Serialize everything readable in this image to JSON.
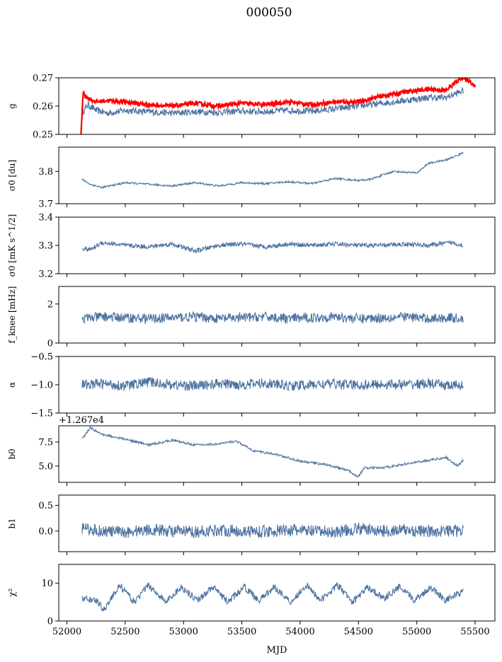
{
  "figure": {
    "title": "000050",
    "xlabel": "MJD",
    "x_ticks": [
      "52000",
      "52500",
      "53000",
      "53500",
      "54000",
      "54500",
      "55000",
      "55500"
    ],
    "line_color": "#4c72a0",
    "overlay_color": "#ff0000"
  },
  "chart_data": [
    {
      "type": "line",
      "ylabel": "g",
      "xlim": [
        51930,
        55670
      ],
      "ylim": [
        0.25,
        0.27
      ],
      "y_ticks": [
        "0.25",
        "0.26",
        "0.27"
      ],
      "series": [
        {
          "color": "#4c72a0",
          "x": [
            52130,
            52180,
            52250,
            52350,
            52500,
            52700,
            52900,
            53100,
            53300,
            53500,
            53700,
            53900,
            54100,
            54300,
            54500,
            54700,
            54900,
            55100,
            55250,
            55400
          ],
          "values": [
            0.2575,
            0.2605,
            0.2585,
            0.2575,
            0.2585,
            0.258,
            0.2575,
            0.258,
            0.2578,
            0.2582,
            0.258,
            0.2585,
            0.2582,
            0.259,
            0.26,
            0.261,
            0.262,
            0.263,
            0.263,
            0.2655
          ]
        },
        {
          "color": "#ff0000",
          "x": [
            52120,
            52140,
            52170,
            52250,
            52350,
            52500,
            52700,
            52900,
            53100,
            53300,
            53500,
            53700,
            53900,
            54100,
            54300,
            54500,
            54700,
            54900,
            55100,
            55250,
            55380,
            55450,
            55500
          ],
          "values": [
            0.25,
            0.265,
            0.263,
            0.2615,
            0.262,
            0.2615,
            0.2605,
            0.26,
            0.261,
            0.26,
            0.261,
            0.2605,
            0.2615,
            0.2605,
            0.2615,
            0.2615,
            0.2635,
            0.265,
            0.266,
            0.2655,
            0.27,
            0.269,
            0.267
          ]
        }
      ]
    },
    {
      "type": "line",
      "ylabel": "σ0 [du]",
      "xlim": [
        51930,
        55670
      ],
      "ylim": [
        3.7,
        3.875
      ],
      "y_ticks": [
        "3.7",
        "3.8"
      ],
      "series": [
        {
          "color": "#4c72a0",
          "x": [
            52130,
            52200,
            52300,
            52500,
            52700,
            52900,
            53100,
            53300,
            53500,
            53700,
            53900,
            54100,
            54300,
            54500,
            54600,
            54800,
            55000,
            55100,
            55250,
            55350,
            55400
          ],
          "values": [
            3.775,
            3.76,
            3.75,
            3.765,
            3.76,
            3.755,
            3.765,
            3.755,
            3.765,
            3.762,
            3.768,
            3.762,
            3.778,
            3.772,
            3.775,
            3.8,
            3.795,
            3.825,
            3.835,
            3.85,
            3.858
          ]
        }
      ]
    },
    {
      "type": "line",
      "ylabel": "σ0 [mK s^1/2]",
      "xlim": [
        51930,
        55670
      ],
      "ylim": [
        3.2,
        3.4
      ],
      "y_ticks": [
        "3.2",
        "3.3",
        "3.4"
      ],
      "series": [
        {
          "color": "#4c72a0",
          "x": [
            52130,
            52200,
            52300,
            52500,
            52700,
            52900,
            53100,
            53300,
            53500,
            53700,
            53900,
            54100,
            54300,
            54500,
            54700,
            54900,
            55100,
            55300,
            55400
          ],
          "values": [
            3.29,
            3.285,
            3.31,
            3.3,
            3.295,
            3.305,
            3.28,
            3.3,
            3.305,
            3.295,
            3.305,
            3.3,
            3.305,
            3.3,
            3.3,
            3.305,
            3.3,
            3.31,
            3.3
          ]
        }
      ]
    },
    {
      "type": "line",
      "ylabel": "f_knee [mHz]",
      "xlim": [
        51930,
        55670
      ],
      "ylim": [
        0,
        2.9
      ],
      "y_ticks": [
        "0",
        "2"
      ],
      "series": [
        {
          "color": "#4c72a0",
          "x": [
            52130,
            52300,
            52500,
            52700,
            52900,
            53100,
            53300,
            53500,
            53700,
            53900,
            54100,
            54300,
            54500,
            54700,
            54900,
            55100,
            55300,
            55400
          ],
          "values": [
            1.25,
            1.35,
            1.3,
            1.25,
            1.3,
            1.35,
            1.25,
            1.3,
            1.35,
            1.25,
            1.3,
            1.35,
            1.25,
            1.3,
            1.35,
            1.25,
            1.3,
            1.25
          ]
        }
      ]
    },
    {
      "type": "line",
      "ylabel": "α",
      "xlim": [
        51930,
        55670
      ],
      "ylim": [
        -1.5,
        -0.5
      ],
      "y_ticks": [
        "-1.5",
        "-1.0",
        "-0.5"
      ],
      "series": [
        {
          "color": "#4c72a0",
          "x": [
            52130,
            52300,
            52500,
            52700,
            52900,
            53100,
            53300,
            53500,
            53700,
            53900,
            54100,
            54300,
            54500,
            54700,
            54900,
            55100,
            55300,
            55400
          ],
          "values": [
            -1.0,
            -0.98,
            -1.02,
            -0.95,
            -1.0,
            -1.02,
            -0.98,
            -1.0,
            -0.97,
            -1.02,
            -1.0,
            -0.98,
            -1.01,
            -0.99,
            -1.0,
            -0.98,
            -1.02,
            -1.0
          ]
        }
      ]
    },
    {
      "type": "line",
      "ylabel": "b0",
      "offset_label": "+1.267e4",
      "xlim": [
        51930,
        55670
      ],
      "ylim": [
        3.3,
        9.2
      ],
      "y_ticks": [
        "5.0",
        "7.5"
      ],
      "series": [
        {
          "color": "#4c72a0",
          "x": [
            52130,
            52200,
            52300,
            52500,
            52700,
            52900,
            53100,
            53300,
            53450,
            53600,
            53800,
            54000,
            54200,
            54400,
            54500,
            54550,
            54700,
            54900,
            55100,
            55250,
            55350,
            55400
          ],
          "values": [
            7.8,
            9.0,
            8.3,
            7.8,
            7.2,
            7.7,
            7.2,
            7.3,
            7.6,
            6.6,
            6.2,
            5.5,
            5.2,
            4.6,
            3.9,
            4.8,
            4.8,
            5.2,
            5.6,
            5.9,
            5.0,
            5.6
          ]
        }
      ]
    },
    {
      "type": "line",
      "ylabel": "b1",
      "xlim": [
        51930,
        55670
      ],
      "ylim": [
        -0.4,
        0.7
      ],
      "y_ticks": [
        "0.0",
        "0.5"
      ],
      "series": [
        {
          "color": "#4c72a0",
          "x": [
            52130,
            52300,
            52500,
            52700,
            52900,
            53100,
            53300,
            53500,
            53700,
            53900,
            54100,
            54300,
            54500,
            54700,
            54900,
            55100,
            55300,
            55400
          ],
          "values": [
            0.05,
            0.0,
            -0.02,
            0.03,
            0.0,
            -0.02,
            0.02,
            0.0,
            -0.01,
            0.02,
            0.0,
            -0.02,
            0.05,
            0.0,
            0.02,
            -0.01,
            0.01,
            0.0
          ]
        }
      ]
    },
    {
      "type": "line",
      "ylabel": "χ²",
      "xlim": [
        51930,
        55670
      ],
      "ylim": [
        0,
        15
      ],
      "y_ticks": [
        "0",
        "10"
      ],
      "series": [
        {
          "color": "#4c72a0",
          "x": [
            52130,
            52250,
            52320,
            52450,
            52580,
            52700,
            52850,
            52980,
            53120,
            53250,
            53380,
            53520,
            53650,
            53780,
            53920,
            54050,
            54180,
            54320,
            54450,
            54580,
            54720,
            54850,
            54980,
            55120,
            55250,
            55400
          ],
          "values": [
            6.0,
            5.5,
            3.0,
            9.5,
            5.0,
            9.5,
            5.0,
            9.0,
            5.5,
            9.0,
            5.0,
            9.0,
            5.5,
            9.0,
            5.0,
            9.5,
            5.5,
            9.5,
            5.0,
            9.0,
            6.0,
            9.0,
            5.5,
            9.0,
            5.5,
            8.0
          ]
        }
      ]
    }
  ]
}
